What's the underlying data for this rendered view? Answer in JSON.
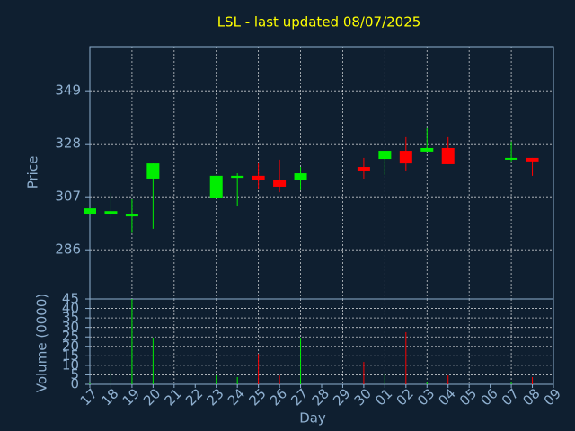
{
  "chart_data": [
    {
      "type": "candlestick",
      "title": "LSL - last updated 08/07/2025",
      "y_label": "Price",
      "ylim": [
        266.5,
        366.5
      ],
      "yticks": [
        286,
        307,
        328,
        349
      ],
      "grid": true,
      "up_color": "#00ee00",
      "down_color": "#ff0000",
      "open": [
        300.3,
        300.3,
        299.2,
        314.2,
        null,
        null,
        306.4,
        314.5,
        315.3,
        313.5,
        313.8,
        null,
        null,
        318.8,
        322.0,
        325.2,
        324.9,
        326.3,
        null,
        null,
        321.7,
        322.4,
        null
      ],
      "high": [
        302.4,
        308.5,
        306.0,
        320.2,
        null,
        null,
        315.3,
        316.3,
        320.6,
        321.7,
        318.8,
        null,
        null,
        322.4,
        325.2,
        330.6,
        334.5,
        330.6,
        null,
        null,
        328.8,
        322.4,
        null
      ],
      "low": [
        300.3,
        298.5,
        293.0,
        294.3,
        null,
        null,
        306.4,
        303.5,
        309.9,
        308.8,
        309.6,
        null,
        null,
        314.2,
        315.6,
        317.4,
        324.9,
        319.9,
        null,
        null,
        321.0,
        315.3,
        null
      ],
      "close": [
        302.4,
        301.3,
        300.3,
        320.2,
        null,
        null,
        315.3,
        315.3,
        313.8,
        311.0,
        316.3,
        null,
        null,
        317.4,
        325.2,
        320.2,
        326.3,
        319.9,
        null,
        null,
        322.4,
        321.0,
        null
      ]
    },
    {
      "type": "bar",
      "y_label": "Volume (0000)",
      "x_label": "Day",
      "categories": [
        "17",
        "18",
        "19",
        "20",
        "21",
        "22",
        "23",
        "24",
        "25",
        "26",
        "27",
        "28",
        "29",
        "30",
        "01",
        "02",
        "03",
        "04",
        "05",
        "06",
        "07",
        "08",
        "09"
      ],
      "values": [
        1.0,
        6.6,
        45,
        24.6,
        null,
        null,
        4.7,
        3.8,
        16,
        4.7,
        24.6,
        null,
        null,
        11.8,
        5.7,
        27.5,
        1.4,
        4.7,
        null,
        null,
        1.4,
        3.8,
        null
      ],
      "ylim": [
        0,
        45
      ],
      "yticks": [
        0,
        5,
        10,
        15,
        20,
        25,
        30,
        35,
        40,
        45
      ],
      "grid": true
    }
  ]
}
